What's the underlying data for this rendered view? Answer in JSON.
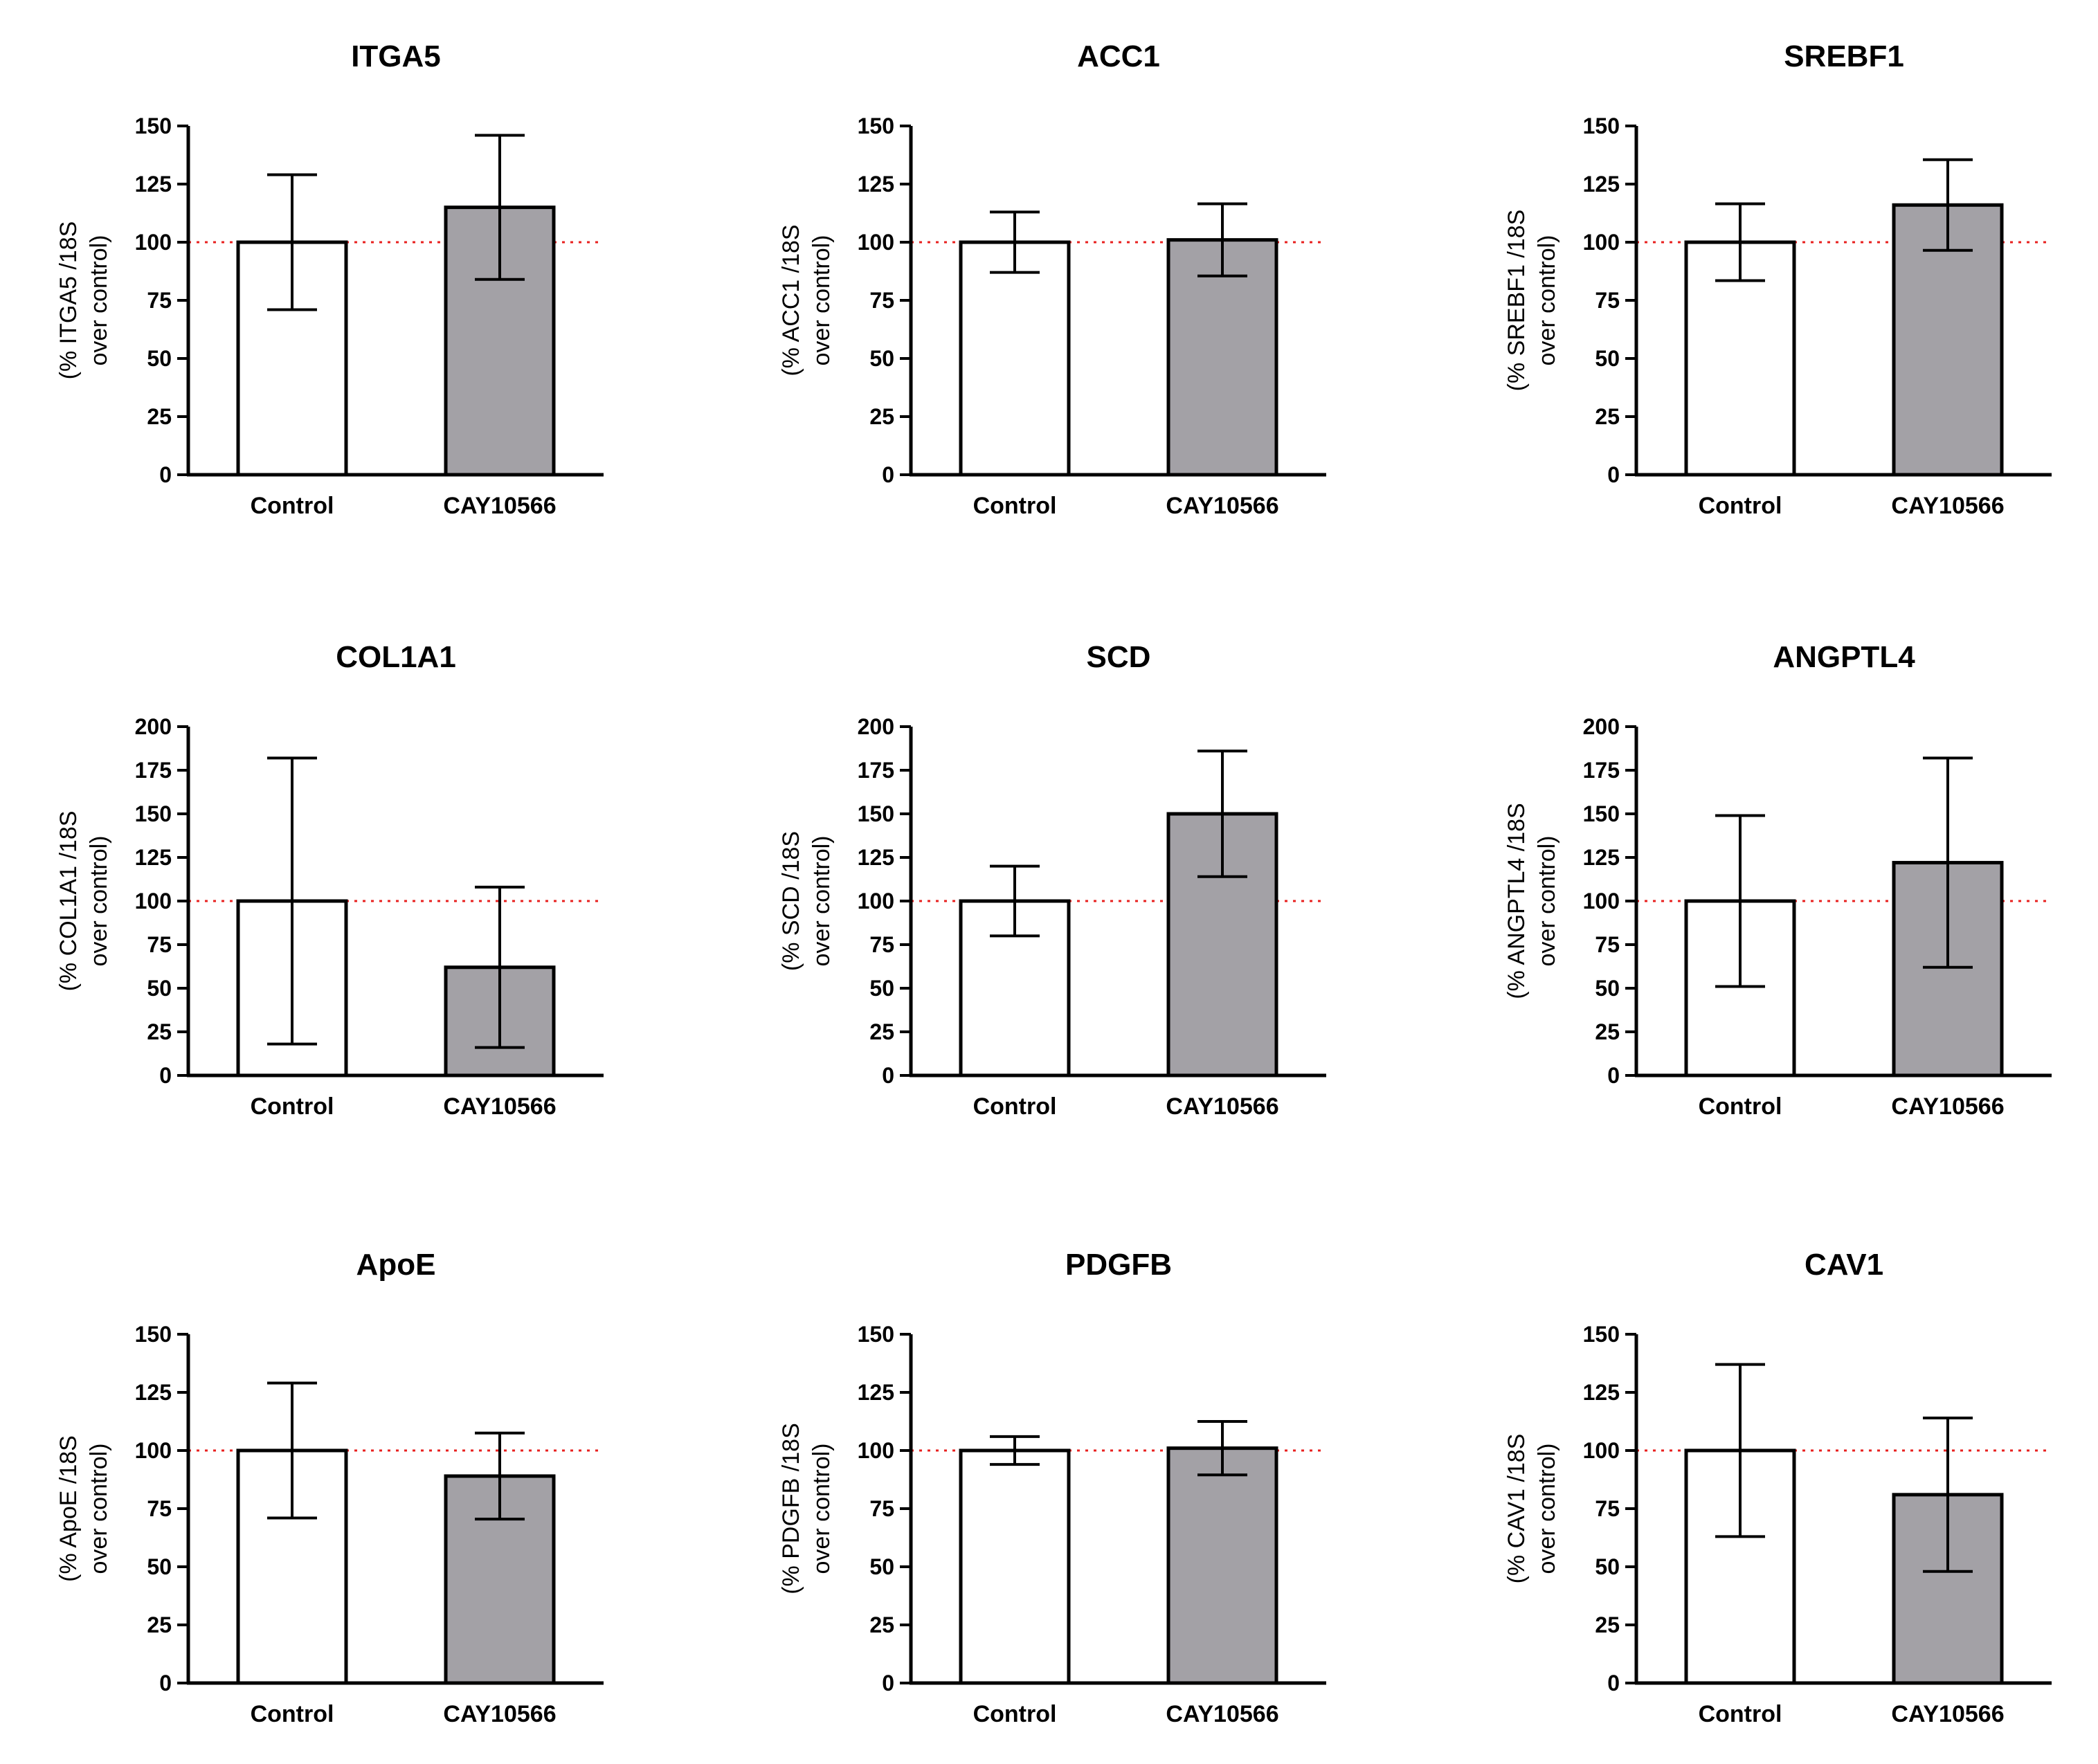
{
  "chart_data": [
    {
      "type": "bar",
      "title": "ITGA5",
      "categories": [
        "Control",
        "CAY10566"
      ],
      "values": [
        100,
        115
      ],
      "error": [
        29,
        31
      ],
      "ylabel_line1": "(% ITGA5 /18S",
      "ylabel_line2": "over control)",
      "ylim": [
        0,
        150
      ],
      "yticks": [
        0,
        25,
        50,
        75,
        100,
        125,
        150
      ],
      "yticklabels": [
        "0",
        "25",
        "50",
        "75",
        "100",
        "125",
        "150"
      ],
      "reference_line": 100
    },
    {
      "type": "bar",
      "title": "ACC1",
      "categories": [
        "Control",
        "CAY10566"
      ],
      "values": [
        100,
        101
      ],
      "error": [
        13,
        15.5
      ],
      "ylabel_line1": "(% ACC1 /18S",
      "ylabel_line2": "over control)",
      "ylim": [
        0,
        150
      ],
      "yticks": [
        0,
        25,
        50,
        75,
        100,
        125,
        150
      ],
      "yticklabels": [
        "0",
        "25",
        "50",
        "75",
        "100",
        "125",
        "150"
      ],
      "reference_line": 100
    },
    {
      "type": "bar",
      "title": "SREBF1",
      "categories": [
        "Control",
        "CAY10566"
      ],
      "values": [
        100,
        116
      ],
      "error": [
        16.5,
        19.5
      ],
      "ylabel_line1": "(% SREBF1 /18S",
      "ylabel_line2": "over control)",
      "ylim": [
        0,
        150
      ],
      "yticks": [
        0,
        25,
        50,
        75,
        100,
        125,
        150
      ],
      "yticklabels": [
        "0",
        "25",
        "50",
        "75",
        "100",
        "125",
        "150"
      ],
      "reference_line": 100
    },
    {
      "type": "bar",
      "title": "COL1A1",
      "categories": [
        "Control",
        "CAY10566"
      ],
      "values": [
        100,
        62
      ],
      "error": [
        82,
        46
      ],
      "ylabel_line1": "(% COL1A1 /18S",
      "ylabel_line2": "over control)",
      "ylim": [
        0,
        200
      ],
      "yticks": [
        0,
        25,
        50,
        75,
        100,
        125,
        150,
        175,
        200
      ],
      "yticklabels": [
        "0",
        "25",
        "50",
        "75",
        "100",
        "125",
        "150",
        "175",
        "200"
      ],
      "reference_line": 100
    },
    {
      "type": "bar",
      "title": "SCD",
      "categories": [
        "Control",
        "CAY10566"
      ],
      "values": [
        100,
        150
      ],
      "error": [
        20,
        36
      ],
      "ylabel_line1": "(% SCD /18S",
      "ylabel_line2": "over control)",
      "ylim": [
        0,
        200
      ],
      "yticks": [
        0,
        25,
        50,
        75,
        100,
        125,
        150,
        175,
        200
      ],
      "yticklabels": [
        "0",
        "25",
        "50",
        "75",
        "100",
        "125",
        "150",
        "175",
        "200"
      ],
      "reference_line": 100
    },
    {
      "type": "bar",
      "title": "ANGPTL4",
      "categories": [
        "Control",
        "CAY10566"
      ],
      "values": [
        100,
        122
      ],
      "error": [
        49,
        60
      ],
      "ylabel_line1": "(% ANGPTL4 /18S",
      "ylabel_line2": "over control)",
      "ylim": [
        0,
        200
      ],
      "yticks": [
        0,
        25,
        50,
        75,
        100,
        125,
        150,
        175,
        200
      ],
      "yticklabels": [
        "0",
        "25",
        "50",
        "75",
        "100",
        "125",
        "150",
        "175",
        "200"
      ],
      "reference_line": 100
    },
    {
      "type": "bar",
      "title": "ApoE",
      "categories": [
        "Control",
        "CAY10566"
      ],
      "values": [
        100,
        89
      ],
      "error": [
        29,
        18.5
      ],
      "ylabel_line1": "(% ApoE /18S",
      "ylabel_line2": "over control)",
      "ylim": [
        0,
        150
      ],
      "yticks": [
        0,
        25,
        50,
        75,
        100,
        125,
        150
      ],
      "yticklabels": [
        "0",
        "25",
        "50",
        "75",
        "100",
        "125",
        "150"
      ],
      "reference_line": 100
    },
    {
      "type": "bar",
      "title": "PDGFB",
      "categories": [
        "Control",
        "CAY10566"
      ],
      "values": [
        100,
        101
      ],
      "error": [
        6,
        11.5
      ],
      "ylabel_line1": "(% PDGFB /18S",
      "ylabel_line2": "over control)",
      "ylim": [
        0,
        150
      ],
      "yticks": [
        0,
        25,
        50,
        75,
        100,
        125,
        150
      ],
      "yticklabels": [
        "0",
        "25",
        "50",
        "75",
        "100",
        "125",
        "150"
      ],
      "reference_line": 100
    },
    {
      "type": "bar",
      "title": "CAV1",
      "categories": [
        "Control",
        "CAY10566"
      ],
      "values": [
        100,
        81
      ],
      "error": [
        37,
        33
      ],
      "ylabel_line1": "(% CAV1 /18S",
      "ylabel_line2": "over control)",
      "ylim": [
        0,
        150
      ],
      "yticks": [
        0,
        25,
        50,
        75,
        100,
        125,
        150
      ],
      "yticklabels": [
        "0",
        "25",
        "50",
        "75",
        "100",
        "125",
        "150"
      ],
      "reference_line": 100
    }
  ],
  "colors": {
    "control_fill": "#ffffff",
    "treatment_fill": "#a3a1a6",
    "reference_line": "#e8201f",
    "axis": "#000000"
  }
}
